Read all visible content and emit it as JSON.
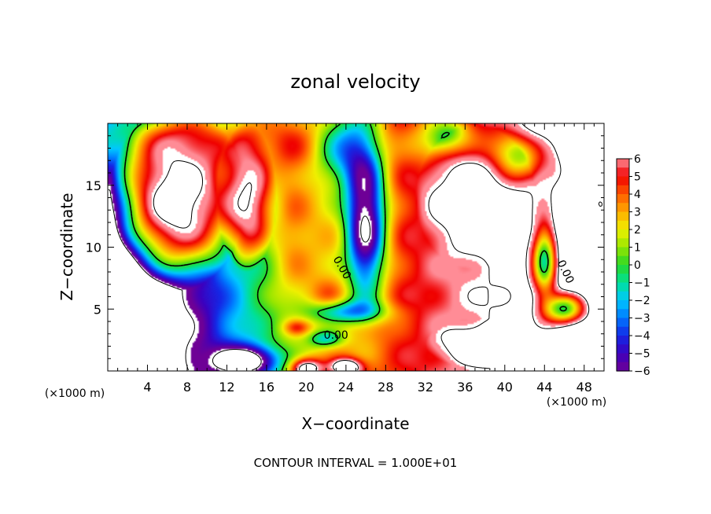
{
  "chart_data": {
    "type": "heatmap",
    "title": "zonal velocity",
    "xlabel": "X−coordinate",
    "ylabel": "Z−coordinate",
    "x_unit_left": "(×1000 m)",
    "x_unit_right": "(×1000 m)",
    "xlim": [
      0,
      50
    ],
    "ylim": [
      0,
      20
    ],
    "x_ticks": [
      4,
      8,
      12,
      16,
      20,
      24,
      28,
      32,
      36,
      40,
      44,
      48
    ],
    "y_ticks": [
      5,
      10,
      15
    ],
    "colorbar": {
      "range": [
        -6,
        6
      ],
      "ticks": [
        "6",
        "5",
        "4",
        "3",
        "2",
        "1",
        "0",
        "−1",
        "−2",
        "−3",
        "−4",
        "−5",
        "−6"
      ]
    },
    "contour_labels": [
      {
        "text": "0.00",
        "x": 23.3,
        "z": 8.2,
        "angle": 60
      },
      {
        "text": "0.00",
        "x": 23.0,
        "z": 2.6,
        "angle": 0
      },
      {
        "text": "0.00",
        "x": 45.8,
        "z": 7.9,
        "angle": 65
      }
    ],
    "footnote": "CONTOUR INTERVAL = 1.000E+01",
    "field_features": {
      "background_min_left": {
        "x": [
          -8,
          12
        ],
        "z": [
          -15,
          20
        ]
      },
      "white_regions": [
        {
          "value": 7,
          "cx": 7,
          "cz": 14,
          "sx": 6.8,
          "sz": 7.5
        },
        {
          "value": 7,
          "cx": 37,
          "cz": 14,
          "sx": 6,
          "sz": 5.8
        },
        {
          "value": 7,
          "cx": 38,
          "cz": 2.2,
          "sx": 6,
          "sz": 2
        },
        {
          "value": -7,
          "cx": 2.5,
          "cz": 1.2,
          "sx": 2.5,
          "sz": 1.3
        },
        {
          "value": 6,
          "cx": 14,
          "cz": 14,
          "sx": 3,
          "sz": 6
        },
        {
          "value": 6,
          "cx": 49,
          "cz": 14,
          "sx": 3,
          "sz": 5
        }
      ]
    }
  }
}
